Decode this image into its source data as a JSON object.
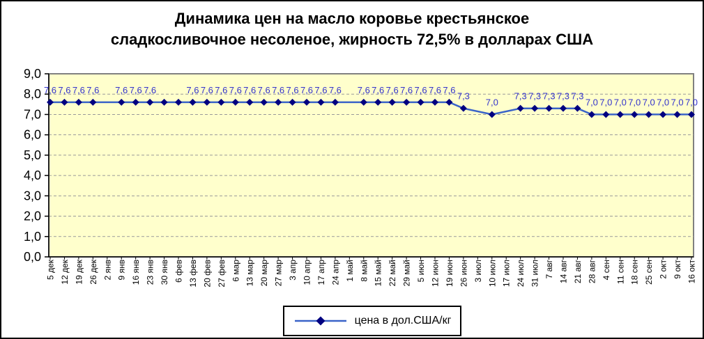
{
  "title": {
    "line1": "Динамика цен на масло коровье крестьянское",
    "line2": "сладкосливочное несоленое, жирность 72,5% в долларах США"
  },
  "legend": {
    "label": "цена в дол.США/кг",
    "marker_icon": "line-diamond-marker"
  },
  "chart_data": {
    "type": "line",
    "title": "Динамика цен на масло коровье крестьянское сладкосливочное несоленое, жирность 72,5% в долларах США",
    "xlabel": "",
    "ylabel": "",
    "ylim": [
      0,
      9
    ],
    "ytick_labels": [
      "0,0",
      "1,0",
      "2,0",
      "3,0",
      "4,0",
      "5,0",
      "6,0",
      "7,0",
      "8,0",
      "9,0"
    ],
    "grid": "horizontal-dashed",
    "legend_position": "bottom-center",
    "categories": [
      "5 дек",
      "12 дек",
      "19 дек",
      "26 дек",
      "2 янв",
      "9 янв",
      "16 янв",
      "23 янв",
      "30 янв",
      "6 фев",
      "13 фев",
      "20 фев",
      "27 фев",
      "6 мар",
      "13 мар",
      "20 мар",
      "27 мар",
      "3 апр",
      "10 апр",
      "17 апр",
      "24 апр",
      "1 май",
      "8 май",
      "15 май",
      "22 май",
      "29 май",
      "5 июн",
      "12 июн",
      "19 июн",
      "26 июн",
      "3 июл",
      "10 июл",
      "17 июл",
      "24 июл",
      "31 июл",
      "7 авг",
      "14 авг",
      "21 авг",
      "28 авг",
      "4 сен",
      "11 сен",
      "18 сен",
      "25 сен",
      "2 окт",
      "9 окт",
      "16 окт"
    ],
    "series": [
      {
        "name": "цена в дол.США/кг",
        "values": [
          7.6,
          7.6,
          7.6,
          7.6,
          null,
          7.6,
          7.6,
          7.6,
          7.6,
          7.6,
          7.6,
          7.6,
          7.6,
          7.6,
          7.6,
          7.6,
          7.6,
          7.6,
          7.6,
          7.6,
          7.6,
          null,
          7.6,
          7.6,
          7.6,
          7.6,
          7.6,
          7.6,
          7.6,
          7.3,
          null,
          7.0,
          null,
          7.3,
          7.3,
          7.3,
          7.3,
          7.3,
          7.0,
          7.0,
          7.0,
          7.0,
          7.0,
          7.0,
          7.0,
          7.0
        ],
        "point_labels": [
          "7,6",
          "7,6",
          "7,6",
          "7,6",
          "",
          "7,6",
          "7,6",
          "7,6",
          "",
          "",
          "7,6",
          "7,6",
          "7,6",
          "7,6",
          "7,6",
          "7,6",
          "7,6",
          "7,6",
          "7,6",
          "7,6",
          "7,6",
          "",
          "7,6",
          "7,6",
          "7,6",
          "7,6",
          "7,6",
          "7,6",
          "7,6",
          "7,3",
          "",
          "7,0",
          "",
          "7,3",
          "7,3",
          "7,3",
          "7,3",
          "7,3",
          "7,0",
          "7,0",
          "7,0",
          "7,0",
          "7,0",
          "7,0",
          "7,0",
          "7,0"
        ]
      }
    ],
    "colors": {
      "line": "#3a63c8",
      "marker": "#000080",
      "point_label": "#3333cc",
      "plot_bg": "#ffffcc",
      "gridline": "#999999",
      "plot_border": "#808080",
      "axis": "#000000",
      "text": "#000000"
    }
  }
}
